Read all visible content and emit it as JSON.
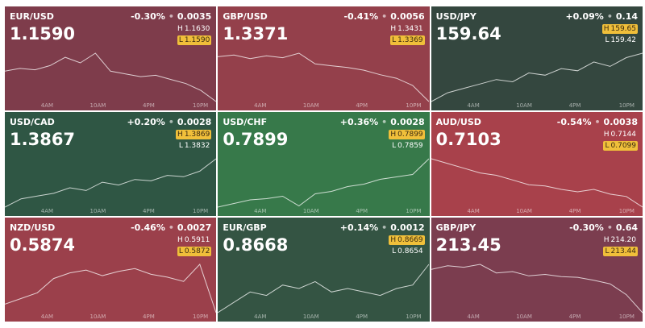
{
  "time_labels": [
    "4AM",
    "10AM",
    "4PM",
    "10PM"
  ],
  "high_label": "H",
  "low_label": "L",
  "tiles": [
    {
      "pair": "EUR/USD",
      "change_pct": "-0.30%",
      "change": "0.0035",
      "price": "1.1590",
      "high": "1.1630",
      "low": "1.1590",
      "highlight": "low",
      "color": "#7e3c4b",
      "spark": [
        1.1612,
        1.1614,
        1.1613,
        1.1616,
        1.1622,
        1.1618,
        1.1625,
        1.1612,
        1.161,
        1.1608,
        1.1609,
        1.1606,
        1.1603,
        1.1598,
        1.159
      ]
    },
    {
      "pair": "GBP/USD",
      "change_pct": "-0.41%",
      "change": "0.0056",
      "price": "1.3371",
      "high": "1.3431",
      "low": "1.3369",
      "highlight": "low",
      "color": "#94404b",
      "spark": [
        1.342,
        1.3422,
        1.3418,
        1.3421,
        1.3419,
        1.3424,
        1.3412,
        1.341,
        1.3408,
        1.3405,
        1.34,
        1.3396,
        1.3388,
        1.337
      ]
    },
    {
      "pair": "USD/JPY",
      "change_pct": "+0.09%",
      "change": "0.14",
      "price": "159.64",
      "high": "159.65",
      "low": "159.42",
      "highlight": "high",
      "color": "#34473f",
      "spark": [
        159.42,
        159.46,
        159.48,
        159.5,
        159.52,
        159.51,
        159.55,
        159.54,
        159.57,
        159.56,
        159.6,
        159.58,
        159.62,
        159.64
      ]
    },
    {
      "pair": "USD/CAD",
      "change_pct": "+0.20%",
      "change": "0.0028",
      "price": "1.3867",
      "high": "1.3869",
      "low": "1.3832",
      "highlight": "high",
      "color": "#2f5644",
      "spark": [
        1.3832,
        1.3838,
        1.384,
        1.3842,
        1.3846,
        1.3844,
        1.385,
        1.3848,
        1.3852,
        1.3851,
        1.3855,
        1.3854,
        1.3858,
        1.3867
      ]
    },
    {
      "pair": "USD/CHF",
      "change_pct": "+0.36%",
      "change": "0.0028",
      "price": "0.7899",
      "high": "0.7899",
      "low": "0.7859",
      "highlight": "high",
      "color": "#37794a",
      "spark": [
        0.7859,
        0.7862,
        0.7865,
        0.7866,
        0.7868,
        0.786,
        0.787,
        0.7872,
        0.7876,
        0.7878,
        0.7882,
        0.7884,
        0.7886,
        0.7899
      ]
    },
    {
      "pair": "AUD/USD",
      "change_pct": "-0.54%",
      "change": "0.0038",
      "price": "0.7103",
      "high": "0.7144",
      "low": "0.7099",
      "highlight": "low",
      "color": "#a8414b",
      "spark": [
        0.714,
        0.7136,
        0.7132,
        0.7128,
        0.7126,
        0.7122,
        0.7118,
        0.7117,
        0.7114,
        0.7112,
        0.7114,
        0.711,
        0.7108,
        0.7099
      ]
    },
    {
      "pair": "NZD/USD",
      "change_pct": "-0.46%",
      "change": "0.0027",
      "price": "0.5874",
      "high": "0.5911",
      "low": "0.5872",
      "highlight": "low",
      "color": "#9b404b",
      "spark": [
        0.588,
        0.5884,
        0.5888,
        0.5898,
        0.5902,
        0.5904,
        0.59,
        0.5903,
        0.5905,
        0.5901,
        0.5899,
        0.5896,
        0.5908,
        0.5874
      ]
    },
    {
      "pair": "EUR/GBP",
      "change_pct": "+0.14%",
      "change": "0.0012",
      "price": "0.8668",
      "high": "0.8669",
      "low": "0.8654",
      "highlight": "high",
      "color": "#345443",
      "spark": [
        0.8654,
        0.8657,
        0.866,
        0.8659,
        0.8662,
        0.8661,
        0.8663,
        0.866,
        0.8661,
        0.866,
        0.8659,
        0.8661,
        0.8662,
        0.8668
      ]
    },
    {
      "pair": "GBP/JPY",
      "change_pct": "-0.30%",
      "change": "0.64",
      "price": "213.45",
      "high": "214.20",
      "low": "213.44",
      "highlight": "low",
      "color": "#7b3d4f",
      "spark": [
        214.05,
        214.1,
        214.08,
        214.12,
        214.0,
        214.02,
        213.96,
        213.98,
        213.95,
        213.94,
        213.9,
        213.85,
        213.7,
        213.45
      ]
    }
  ]
}
